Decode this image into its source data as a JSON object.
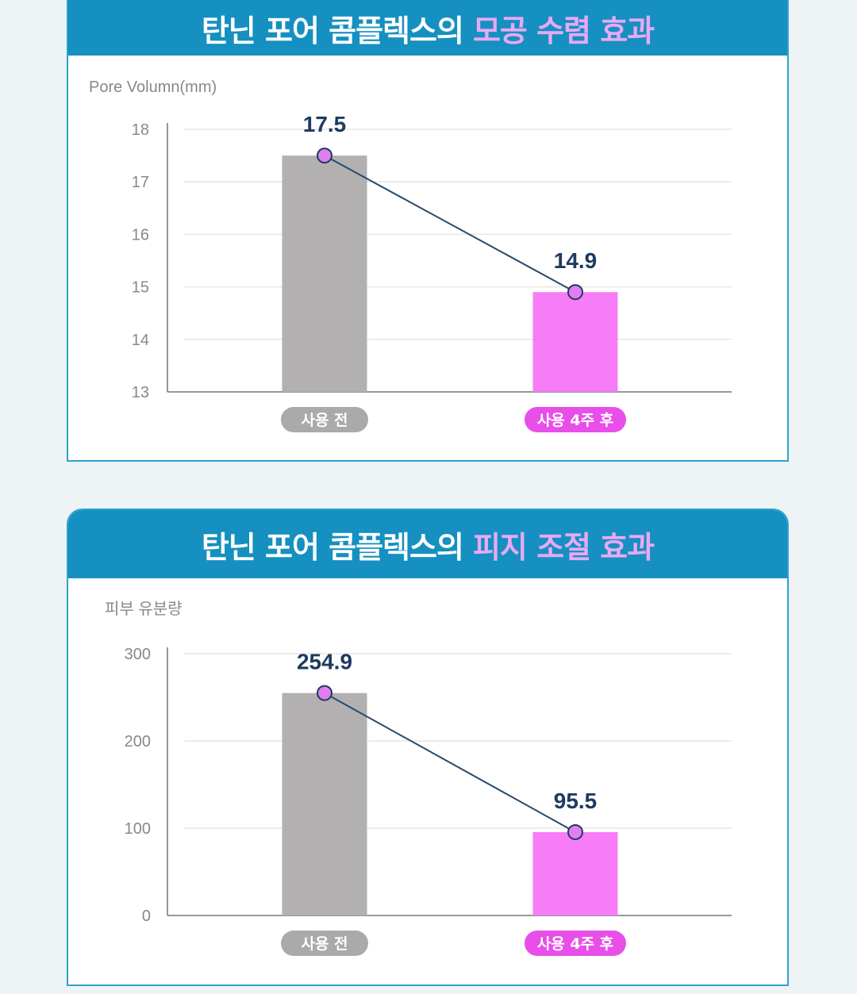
{
  "colors": {
    "header": "#1590c0",
    "highlight": "#e8a9f6",
    "bar_before": "#b2b0b1",
    "bar_after": "#f77cf7",
    "pill_before": "#aaaaaa",
    "pill_after": "#e84fe8",
    "line": "#2a4a6a",
    "point": "#e07ef0",
    "value_label": "#1e3a5f"
  },
  "chart_data": [
    {
      "type": "bar",
      "title": "탄닌 포어 콤플렉스의",
      "title_highlight": "모공 수렴 효과",
      "ylabel": "Pore Volumn(mm)",
      "ylim": [
        13,
        18
      ],
      "yticks": [
        13,
        14,
        15,
        16,
        17,
        18
      ],
      "categories": [
        "사용 전",
        "사용 4주 후"
      ],
      "values": [
        17.5,
        14.9
      ],
      "data_labels": [
        "17.5",
        "14.9"
      ],
      "overlay": "line connecting bar tops",
      "grid": true
    },
    {
      "type": "bar",
      "title": "탄닌 포어 콤플렉스의",
      "title_highlight": "피지 조절 효과",
      "ylabel": "피부 유분량",
      "ylim": [
        0,
        300
      ],
      "yticks": [
        0,
        100,
        200,
        300
      ],
      "categories": [
        "사용 전",
        "사용 4주 후"
      ],
      "values": [
        254.9,
        95.5
      ],
      "data_labels": [
        "254.9",
        "95.5"
      ],
      "overlay": "line connecting bar tops",
      "grid": true
    }
  ]
}
